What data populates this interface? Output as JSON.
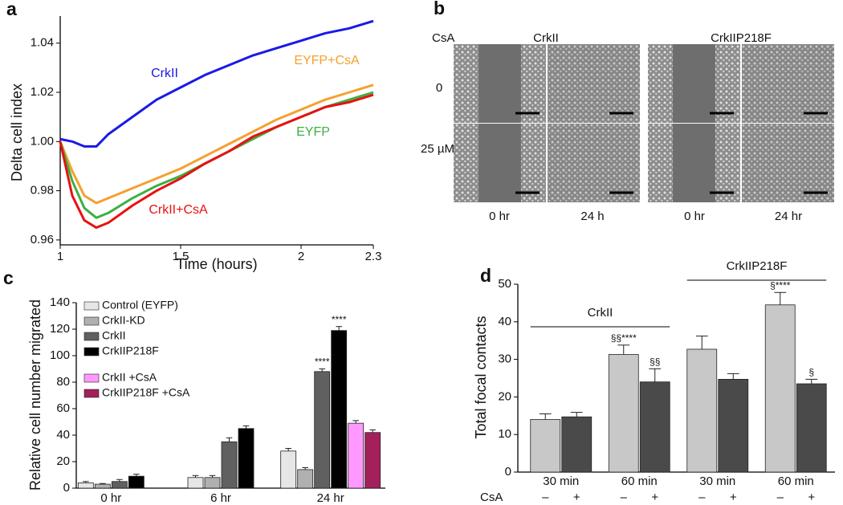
{
  "chart_data": [
    {
      "type": "line",
      "panel": "a",
      "x_label": "Time (hours)",
      "y_label": "Delta cell index",
      "x": [
        1,
        1.05,
        1.1,
        1.15,
        1.2,
        1.3,
        1.4,
        1.5,
        1.6,
        1.7,
        1.8,
        1.9,
        2,
        2.1,
        2.2,
        2.3
      ],
      "xlim": [
        1,
        2.3
      ],
      "xticks": [
        1,
        1.5,
        2,
        2.3
      ],
      "ylim": [
        0.958,
        1.051
      ],
      "yticks": [
        0.96,
        0.98,
        {
          "value": 1,
          "label": "1.00"
        },
        1.02,
        1.04
      ],
      "series": [
        {
          "name": "CrkII",
          "color": "#1a1ae6",
          "values": [
            1.001,
            1.0,
            0.998,
            0.998,
            1.003,
            1.01,
            1.017,
            1.022,
            1.027,
            1.031,
            1.035,
            1.038,
            1.041,
            1.044,
            1.046,
            1.049
          ]
        },
        {
          "name": "EYFP+CsA",
          "color": "#f5a030",
          "values": [
            1.0,
            0.988,
            0.978,
            0.975,
            0.977,
            0.981,
            0.985,
            0.989,
            0.994,
            0.999,
            1.004,
            1.009,
            1.013,
            1.017,
            1.02,
            1.023
          ]
        },
        {
          "name": "EYFP",
          "color": "#3cb043",
          "values": [
            1.0,
            0.984,
            0.973,
            0.969,
            0.971,
            0.977,
            0.982,
            0.986,
            0.991,
            0.996,
            1.001,
            1.006,
            1.01,
            1.014,
            1.017,
            1.02
          ]
        },
        {
          "name": "CrkII+CsA",
          "color": "#e81010",
          "values": [
            1.0,
            0.978,
            0.968,
            0.965,
            0.967,
            0.974,
            0.98,
            0.985,
            0.991,
            0.996,
            1.002,
            1.006,
            1.01,
            1.014,
            1.016,
            1.019
          ]
        }
      ]
    },
    {
      "type": "bar",
      "panel": "c",
      "y_label": "Relative cell number migrated",
      "legend": "upper left",
      "categories": [
        "0 hr",
        "6 hr",
        "24 hr"
      ],
      "ylim": [
        0,
        140
      ],
      "yticks": [
        0,
        20,
        40,
        60,
        80,
        100,
        120,
        140
      ],
      "series": [
        {
          "name": "Control (EYFP)",
          "color": "#e6e6e6",
          "values": [
            4,
            8,
            28
          ],
          "errors": [
            1,
            1.5,
            2
          ]
        },
        {
          "name": "CrkII-KD",
          "color": "#b0b0b0",
          "values": [
            3,
            8,
            14
          ],
          "errors": [
            0.5,
            1.5,
            1.5
          ]
        },
        {
          "name": "CrkII",
          "color": "#606060",
          "values": [
            5,
            35,
            88
          ],
          "errors": [
            1.5,
            3,
            2
          ],
          "significance": [
            null,
            null,
            "****"
          ]
        },
        {
          "name": "CrkIIP218F",
          "color": "#000000",
          "values": [
            9,
            45,
            119
          ],
          "errors": [
            1.5,
            2,
            3
          ],
          "significance": [
            null,
            null,
            "****"
          ]
        },
        {
          "name": "CrkII +CsA",
          "color": "#ff99ff",
          "values": [
            null,
            null,
            49
          ],
          "errors": [
            null,
            null,
            2
          ]
        },
        {
          "name": "CrkIIP218F +CsA",
          "color": "#a3205c",
          "values": [
            null,
            null,
            42
          ],
          "errors": [
            null,
            null,
            2
          ]
        }
      ]
    },
    {
      "type": "bar",
      "panel": "d",
      "y_label": "Total focal contacts",
      "row_label": "CsA",
      "categories": [
        "30 min",
        "60 min",
        "30 min",
        "60 min"
      ],
      "groups": [
        "CrkII",
        "CrkIIP218F"
      ],
      "ylim": [
        0,
        50
      ],
      "yticks": [
        0,
        10,
        20,
        30,
        40,
        50
      ],
      "series": [
        {
          "name": "–",
          "color": "#c8c8c8",
          "values": [
            14,
            31.3,
            32.7,
            44.5
          ],
          "errors": [
            1.5,
            2.5,
            3.5,
            3.3
          ],
          "significance": [
            null,
            "§§****",
            null,
            "§****"
          ]
        },
        {
          "name": "+",
          "color": "#4a4a4a",
          "values": [
            14.7,
            24,
            24.7,
            23.5
          ],
          "errors": [
            1.2,
            3.5,
            1.5,
            1.2
          ],
          "significance": [
            null,
            "§§",
            null,
            "§"
          ]
        }
      ]
    }
  ],
  "panel_b": {
    "letter": "b",
    "row_header": "CsA",
    "columns": [
      "CrkII",
      "CrkIIP218F"
    ],
    "rows": [
      "0",
      "25 µM"
    ],
    "times": [
      "0 hr",
      "24 h",
      "0 hr",
      "24 hr"
    ]
  }
}
